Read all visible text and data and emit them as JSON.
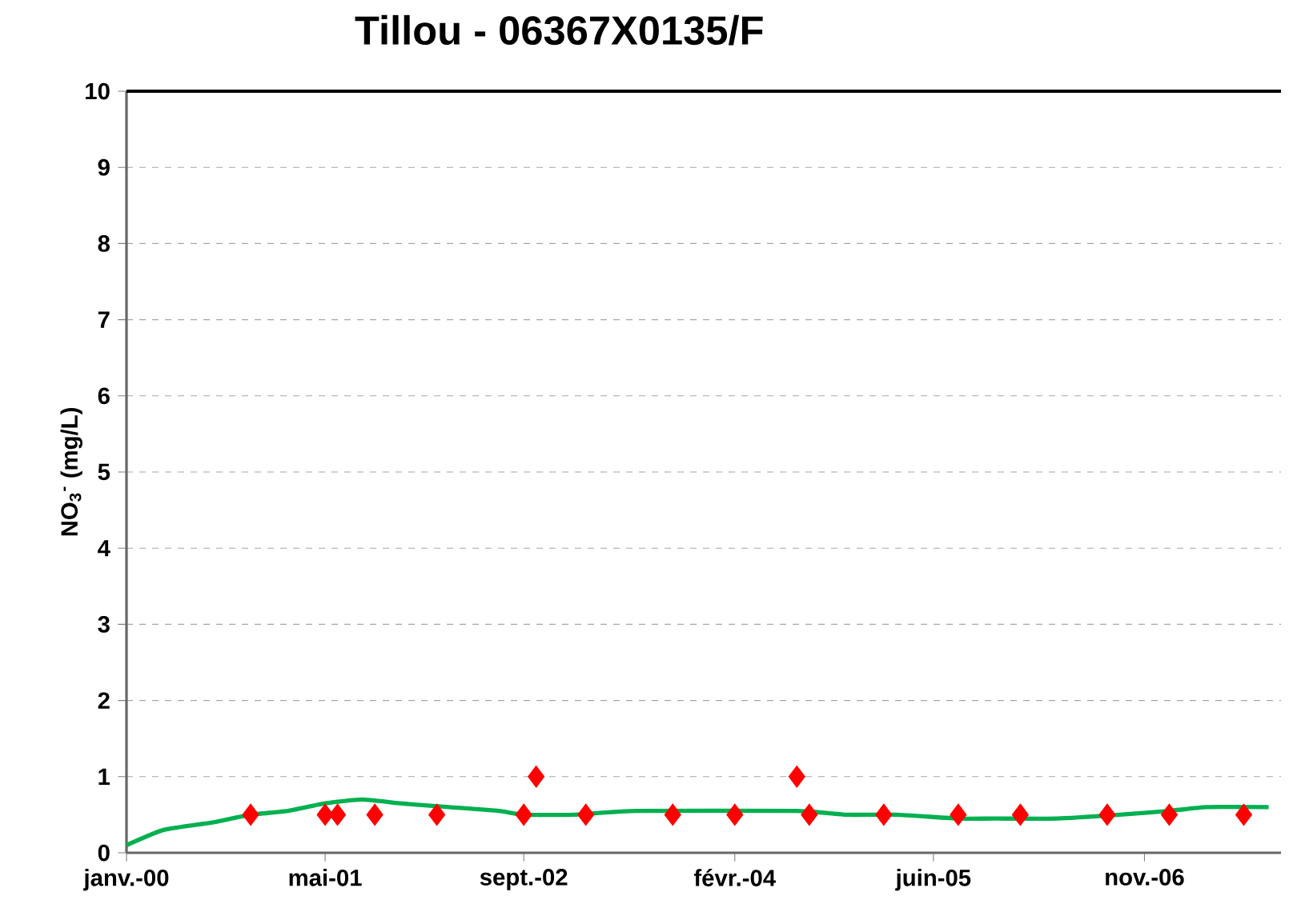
{
  "chart_data": {
    "type": "scatter",
    "title": "Tillou - 06367X0135/F",
    "ylabel": "NO$_{3}$$^{-}$ (mg/L)",
    "xlim": [
      "2000-01",
      "2007-10"
    ],
    "xticks": [
      {
        "value": "2000-01",
        "label": "janv.-00"
      },
      {
        "value": "2001-05",
        "label": "mai-01"
      },
      {
        "value": "2002-09",
        "label": "sept.-02"
      },
      {
        "value": "2004-02",
        "label": "févr.-04"
      },
      {
        "value": "2005-06",
        "label": "juin-05"
      },
      {
        "value": "2006-11",
        "label": "nov.-06"
      }
    ],
    "ylim": [
      0,
      10
    ],
    "yticks": [
      0,
      1,
      2,
      3,
      4,
      5,
      6,
      7,
      8,
      9,
      10
    ],
    "grid": "y",
    "series": [
      {
        "type": "line",
        "color": "#00b050",
        "marker": "none",
        "line_style": "solid",
        "x": [
          "2000-01",
          "2000-04",
          "2000-08",
          "2000-11",
          "2001-02",
          "2001-05",
          "2001-08",
          "2001-11",
          "2002-03",
          "2002-07",
          "2002-09",
          "2003-01",
          "2003-06",
          "2004-07",
          "2004-11",
          "2005-03",
          "2005-08",
          "2005-11",
          "2006-04",
          "2006-09",
          "2007-01",
          "2007-04",
          "2007-09"
        ],
        "values": [
          0.1,
          0.3,
          0.4,
          0.5,
          0.55,
          0.65,
          0.7,
          0.65,
          0.6,
          0.55,
          0.5,
          0.5,
          0.55,
          0.55,
          0.5,
          0.5,
          0.45,
          0.45,
          0.45,
          0.5,
          0.55,
          0.6,
          0.6
        ]
      },
      {
        "color": "#ff0000",
        "marker": "diamond",
        "x": [
          "2000-11",
          "2001-05",
          "2001-06",
          "2001-09",
          "2002-02",
          "2002-09",
          "2002-10",
          "2003-02",
          "2003-09",
          "2004-02",
          "2004-07",
          "2004-08",
          "2005-02",
          "2005-08",
          "2006-01",
          "2006-08",
          "2007-01",
          "2007-07"
        ],
        "values": [
          0.5,
          0.5,
          0.5,
          0.5,
          0.5,
          0.5,
          1,
          0.5,
          0.5,
          0.5,
          1,
          0.5,
          0.5,
          0.5,
          0.5,
          0.5,
          0.5,
          0.5
        ]
      }
    ]
  }
}
